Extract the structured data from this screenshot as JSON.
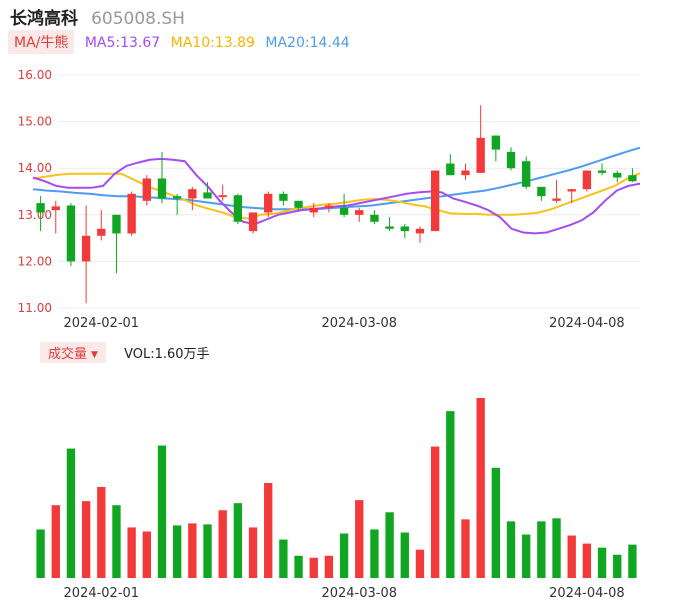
{
  "header": {
    "name": "长鸿高科",
    "code": "605008.SH"
  },
  "ma_bar": {
    "selector": "MA/牛熊",
    "ma5": "MA5:13.67",
    "ma10": "MA10:13.89",
    "ma20": "MA20:14.44"
  },
  "volume_bar": {
    "selector": "成交量",
    "value": "VOL:1.60万手"
  },
  "colors": {
    "up": "#f23a3a",
    "down": "#11a622",
    "ma5": "#a64bf4",
    "ma10": "#f7c21c",
    "ma20": "#4d9cf0",
    "axis_label": "#e03c3c"
  },
  "chart_data": [
    {
      "type": "candlestick",
      "y_ticks": [
        "16.00",
        "15.00",
        "14.00",
        "13.00",
        "12.00",
        "11.00"
      ],
      "ylim": [
        11,
        16
      ],
      "x_tick_labels": [
        "2024-02-01",
        "2024-03-08",
        "2024-04-08"
      ],
      "x_tick_index": [
        4,
        21,
        36
      ],
      "candles": [
        {
          "o": 13.25,
          "h": 13.4,
          "l": 12.65,
          "c": 13.05
        },
        {
          "o": 13.1,
          "h": 13.3,
          "l": 12.6,
          "c": 13.18
        },
        {
          "o": 13.2,
          "h": 13.25,
          "l": 11.9,
          "c": 12.0
        },
        {
          "o": 12.0,
          "h": 13.2,
          "l": 11.1,
          "c": 12.55
        },
        {
          "o": 12.55,
          "h": 13.1,
          "l": 12.45,
          "c": 12.7
        },
        {
          "o": 13.0,
          "h": 13.0,
          "l": 11.75,
          "c": 12.6
        },
        {
          "o": 12.6,
          "h": 13.5,
          "l": 12.55,
          "c": 13.45
        },
        {
          "o": 13.3,
          "h": 13.85,
          "l": 13.2,
          "c": 13.78
        },
        {
          "o": 13.78,
          "h": 14.35,
          "l": 13.25,
          "c": 13.35
        },
        {
          "o": 13.4,
          "h": 13.45,
          "l": 13.0,
          "c": 13.35
        },
        {
          "o": 13.35,
          "h": 13.6,
          "l": 13.1,
          "c": 13.55
        },
        {
          "o": 13.48,
          "h": 13.7,
          "l": 13.35,
          "c": 13.35
        },
        {
          "o": 13.38,
          "h": 13.65,
          "l": 13.3,
          "c": 13.42
        },
        {
          "o": 13.42,
          "h": 13.45,
          "l": 12.8,
          "c": 12.85
        },
        {
          "o": 12.65,
          "h": 13.05,
          "l": 12.6,
          "c": 13.05
        },
        {
          "o": 13.05,
          "h": 13.5,
          "l": 12.95,
          "c": 13.45
        },
        {
          "o": 13.45,
          "h": 13.5,
          "l": 13.2,
          "c": 13.3
        },
        {
          "o": 13.3,
          "h": 13.3,
          "l": 13.1,
          "c": 13.15
        },
        {
          "o": 13.05,
          "h": 13.25,
          "l": 12.95,
          "c": 13.15
        },
        {
          "o": 13.15,
          "h": 13.25,
          "l": 13.05,
          "c": 13.2
        },
        {
          "o": 13.15,
          "h": 13.45,
          "l": 12.95,
          "c": 13.0
        },
        {
          "o": 13.0,
          "h": 13.15,
          "l": 12.85,
          "c": 13.1
        },
        {
          "o": 13.0,
          "h": 13.1,
          "l": 12.8,
          "c": 12.85
        },
        {
          "o": 12.75,
          "h": 12.95,
          "l": 12.65,
          "c": 12.7
        },
        {
          "o": 12.75,
          "h": 12.8,
          "l": 12.5,
          "c": 12.65
        },
        {
          "o": 12.6,
          "h": 12.75,
          "l": 12.4,
          "c": 12.7
        },
        {
          "o": 12.65,
          "h": 13.95,
          "l": 12.65,
          "c": 13.95
        },
        {
          "o": 14.1,
          "h": 14.3,
          "l": 13.85,
          "c": 13.85
        },
        {
          "o": 13.85,
          "h": 14.1,
          "l": 13.75,
          "c": 13.95
        },
        {
          "o": 13.9,
          "h": 15.35,
          "l": 13.9,
          "c": 14.65
        },
        {
          "o": 14.7,
          "h": 14.7,
          "l": 14.15,
          "c": 14.4
        },
        {
          "o": 14.35,
          "h": 14.45,
          "l": 13.95,
          "c": 14.0
        },
        {
          "o": 14.15,
          "h": 14.25,
          "l": 13.55,
          "c": 13.6
        },
        {
          "o": 13.6,
          "h": 13.6,
          "l": 13.3,
          "c": 13.4
        },
        {
          "o": 13.3,
          "h": 13.75,
          "l": 13.25,
          "c": 13.35
        },
        {
          "o": 13.5,
          "h": 13.55,
          "l": 13.25,
          "c": 13.55
        },
        {
          "o": 13.55,
          "h": 13.95,
          "l": 13.5,
          "c": 13.95
        },
        {
          "o": 13.95,
          "h": 14.1,
          "l": 13.85,
          "c": 13.9
        },
        {
          "o": 13.9,
          "h": 13.95,
          "l": 13.7,
          "c": 13.8
        },
        {
          "o": 13.85,
          "h": 14.0,
          "l": 13.7,
          "c": 13.72
        }
      ],
      "ma5": [
        13.8,
        13.72,
        13.62,
        13.58,
        13.58,
        13.58,
        13.62,
        13.88,
        14.05,
        14.12,
        14.18,
        14.2,
        14.18,
        14.15,
        13.85,
        13.6,
        13.3,
        13.05,
        12.85,
        12.8,
        12.9,
        13.0,
        13.05,
        13.1,
        13.12,
        13.15,
        13.18,
        13.2,
        13.25,
        13.3,
        13.35,
        13.4,
        13.45,
        13.48,
        13.5,
        13.48,
        13.35,
        13.28,
        13.2,
        13.1,
        12.95,
        12.7,
        12.62,
        12.6,
        12.62,
        12.7,
        12.78,
        12.88,
        13.05,
        13.3,
        13.52,
        13.62,
        13.67
      ],
      "ma10": [
        13.78,
        13.82,
        13.86,
        13.88,
        13.88,
        13.88,
        13.88,
        13.88,
        13.75,
        13.62,
        13.52,
        13.42,
        13.32,
        13.2,
        13.12,
        13.05,
        12.95,
        12.92,
        13.0,
        13.02,
        13.08,
        13.14,
        13.18,
        13.22,
        13.24,
        13.28,
        13.32,
        13.34,
        13.32,
        13.28,
        13.22,
        13.18,
        13.1,
        13.03,
        13.02,
        13.02,
        13.0,
        13.0,
        13.0,
        13.02,
        13.05,
        13.12,
        13.22,
        13.32,
        13.42,
        13.52,
        13.62,
        13.78,
        13.89
      ],
      "ma20": [
        13.55,
        13.52,
        13.5,
        13.47,
        13.45,
        13.42,
        13.4,
        13.4,
        13.38,
        13.36,
        13.34,
        13.32,
        13.28,
        13.24,
        13.2,
        13.16,
        13.14,
        13.12,
        13.12,
        13.12,
        13.12,
        13.14,
        13.16,
        13.18,
        13.2,
        13.24,
        13.28,
        13.32,
        13.36,
        13.4,
        13.44,
        13.48,
        13.52,
        13.58,
        13.65,
        13.72,
        13.8,
        13.88,
        13.96,
        14.05,
        14.15,
        14.25,
        14.35,
        14.44
      ]
    },
    {
      "type": "bar",
      "name": "成交量",
      "x_tick_labels": [
        "2024-02-01",
        "2024-03-08",
        "2024-04-08"
      ],
      "values": [
        {
          "v": 0.48,
          "dir": "down"
        },
        {
          "v": 0.72,
          "dir": "up"
        },
        {
          "v": 1.28,
          "dir": "down"
        },
        {
          "v": 0.76,
          "dir": "up"
        },
        {
          "v": 0.9,
          "dir": "up"
        },
        {
          "v": 0.72,
          "dir": "down"
        },
        {
          "v": 0.5,
          "dir": "up"
        },
        {
          "v": 0.46,
          "dir": "up"
        },
        {
          "v": 1.31,
          "dir": "down"
        },
        {
          "v": 0.52,
          "dir": "down"
        },
        {
          "v": 0.54,
          "dir": "up"
        },
        {
          "v": 0.53,
          "dir": "down"
        },
        {
          "v": 0.67,
          "dir": "up"
        },
        {
          "v": 0.74,
          "dir": "down"
        },
        {
          "v": 0.5,
          "dir": "up"
        },
        {
          "v": 0.94,
          "dir": "up"
        },
        {
          "v": 0.38,
          "dir": "down"
        },
        {
          "v": 0.22,
          "dir": "down"
        },
        {
          "v": 0.2,
          "dir": "up"
        },
        {
          "v": 0.22,
          "dir": "up"
        },
        {
          "v": 0.44,
          "dir": "down"
        },
        {
          "v": 0.77,
          "dir": "up"
        },
        {
          "v": 0.48,
          "dir": "down"
        },
        {
          "v": 0.65,
          "dir": "down"
        },
        {
          "v": 0.45,
          "dir": "down"
        },
        {
          "v": 0.28,
          "dir": "up"
        },
        {
          "v": 1.3,
          "dir": "up"
        },
        {
          "v": 1.65,
          "dir": "down"
        },
        {
          "v": 0.58,
          "dir": "up"
        },
        {
          "v": 1.78,
          "dir": "up"
        },
        {
          "v": 1.09,
          "dir": "down"
        },
        {
          "v": 0.56,
          "dir": "down"
        },
        {
          "v": 0.43,
          "dir": "down"
        },
        {
          "v": 0.56,
          "dir": "down"
        },
        {
          "v": 0.59,
          "dir": "down"
        },
        {
          "v": 0.42,
          "dir": "up"
        },
        {
          "v": 0.34,
          "dir": "up"
        },
        {
          "v": 0.3,
          "dir": "down"
        },
        {
          "v": 0.23,
          "dir": "down"
        },
        {
          "v": 0.33,
          "dir": "down"
        }
      ]
    }
  ]
}
